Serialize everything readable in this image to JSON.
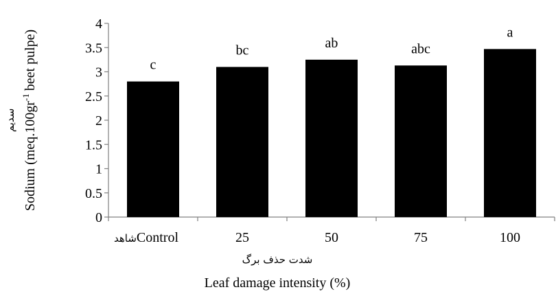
{
  "chart_data": {
    "type": "bar",
    "categories": [
      "Control",
      "25",
      "50",
      "75",
      "100"
    ],
    "category_prefix_fa": "شاهد",
    "values": [
      2.8,
      3.1,
      3.25,
      3.13,
      3.47
    ],
    "significance_letters": [
      "c",
      "bc",
      "ab",
      "abc",
      "a"
    ],
    "ylim": [
      0,
      4
    ],
    "yticks": [
      "0",
      "0.5",
      "1",
      "1.5",
      "2",
      "2.5",
      "3",
      "3.5",
      "4"
    ],
    "ylabel_fa": "سدیم",
    "ylabel_en_prefix": "Sodium (meq.100gr",
    "ylabel_en_sup": "-1",
    "ylabel_en_suffix": "beet  pulpe)",
    "xlabel_fa": "شدت حذف برگ",
    "xlabel_en": "Leaf damage intensity (%)",
    "bar_color": "#000000",
    "grid": false,
    "legend": "none"
  }
}
